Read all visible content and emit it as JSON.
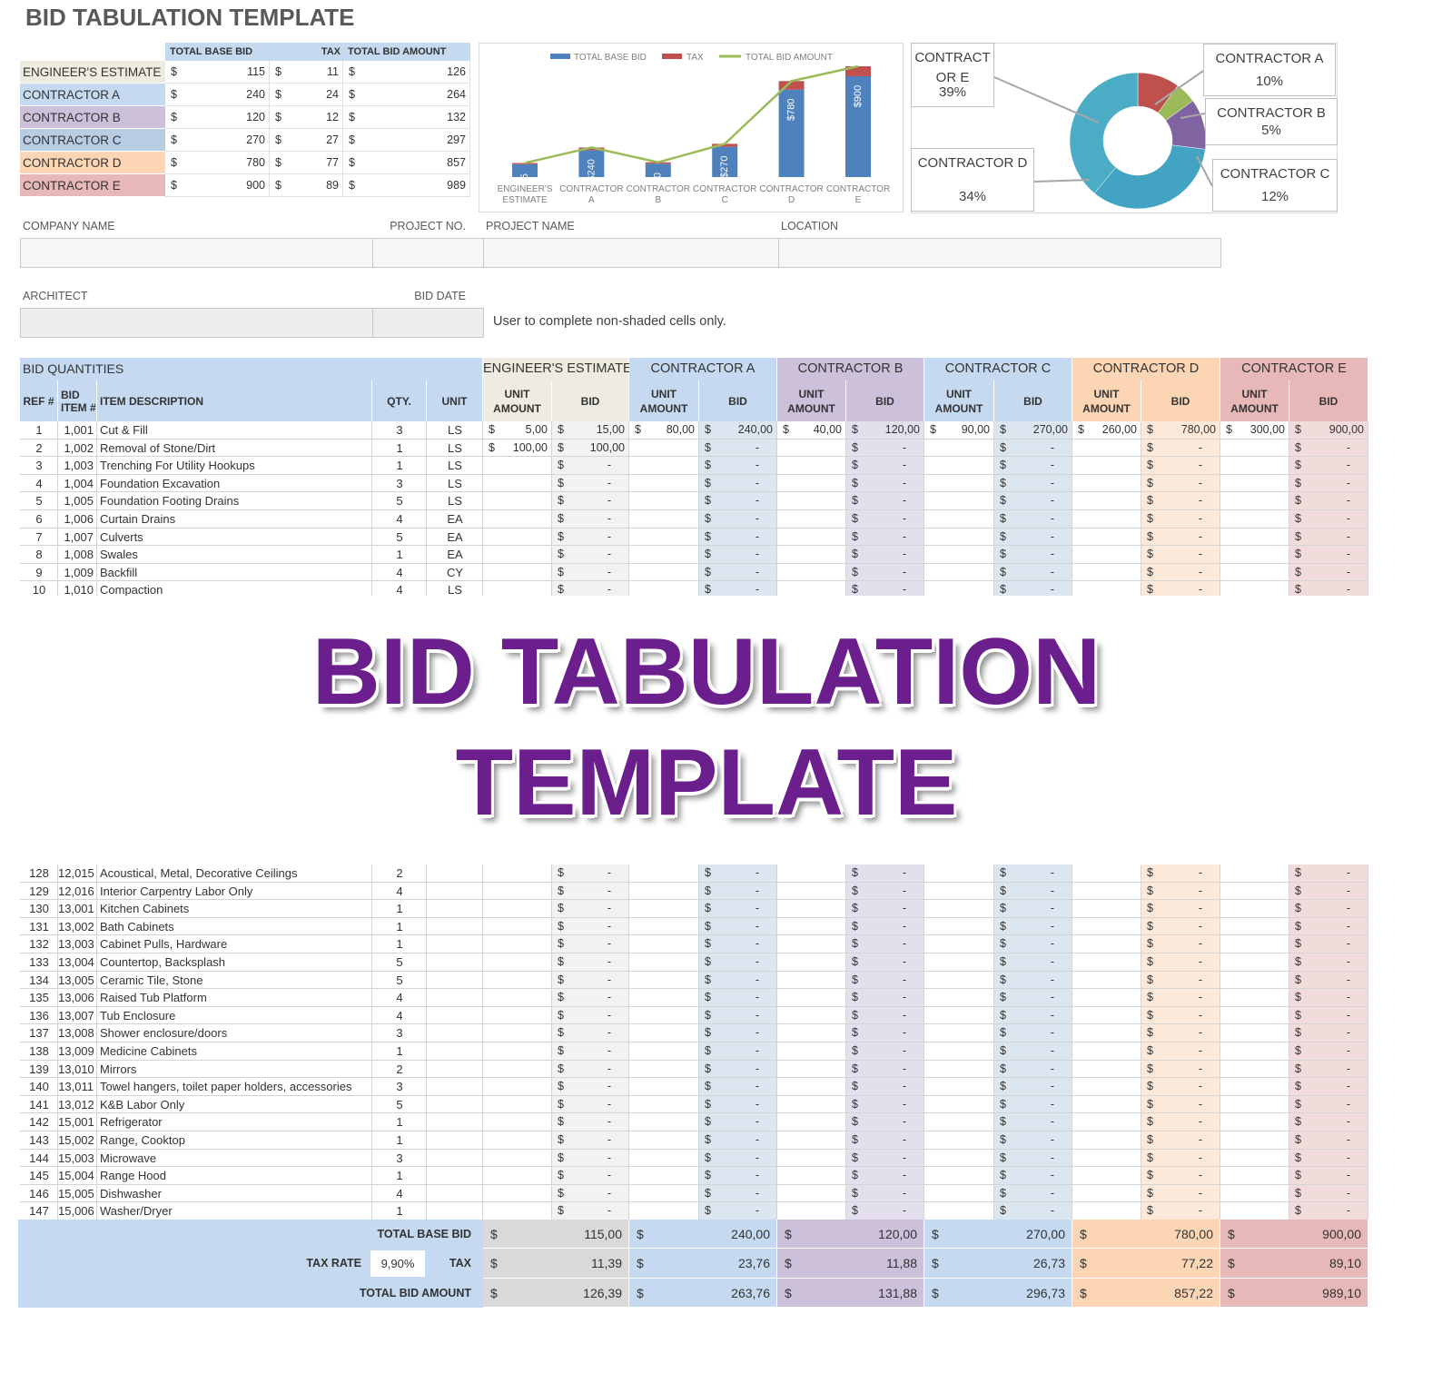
{
  "title": "BID TABULATION TEMPLATE",
  "currency": "$",
  "summary": {
    "headers": [
      "TOTAL BASE BID",
      "TAX",
      "TOTAL BID AMOUNT"
    ],
    "rows": [
      [
        "ENGINEER'S ESTIMATE",
        115,
        11,
        126
      ],
      [
        "CONTRACTOR A",
        240,
        24,
        264
      ],
      [
        "CONTRACTOR B",
        120,
        12,
        132
      ],
      [
        "CONTRACTOR C",
        270,
        27,
        297
      ],
      [
        "CONTRACTOR D",
        780,
        77,
        857
      ],
      [
        "CONTRACTOR E",
        900,
        89,
        989
      ]
    ]
  },
  "chart_data": [
    {
      "type": "bar",
      "stacked": true,
      "categories": [
        "ENGINEER'S ESTIMATE",
        "CONTRACTOR A",
        "CONTRACTOR B",
        "CONTRACTOR C",
        "CONTRACTOR D",
        "CONTRACTOR E"
      ],
      "series": [
        {
          "name": "TOTAL BASE BID",
          "color": "#4f81bd",
          "values": [
            115,
            240,
            120,
            270,
            780,
            900
          ],
          "value_labels": [
            "$115",
            "$240",
            "$120",
            "$270",
            "$780",
            "$900"
          ]
        },
        {
          "name": "TAX",
          "color": "#c0504d",
          "values": [
            11,
            24,
            12,
            27,
            77,
            89
          ]
        },
        {
          "name": "TOTAL BID AMOUNT",
          "type": "line",
          "color": "#9bbb59",
          "values": [
            126,
            264,
            132,
            297,
            857,
            989
          ]
        }
      ]
    },
    {
      "type": "pie",
      "donut": true,
      "categories": [
        "CONTRACTOR A",
        "CONTRACTOR B",
        "CONTRACTOR C",
        "CONTRACTOR D",
        "CONTRACTOR E"
      ],
      "values": [
        10,
        5,
        12,
        34,
        39
      ],
      "value_labels": [
        "10%",
        "5%",
        "12%",
        "34%",
        "39%"
      ],
      "colors": [
        "#c0504d",
        "#9bbb59",
        "#8064a2",
        "#43a3c2",
        "#4bacc6"
      ]
    }
  ],
  "form": {
    "company_name": "COMPANY NAME",
    "project_no": "PROJECT NO.",
    "project_name": "PROJECT NAME",
    "location": "LOCATION",
    "architect": "ARCHITECT",
    "bid_date": "BID DATE",
    "note": "User to complete non-shaded cells only."
  },
  "table": {
    "group_label": "BID QUANTITIES",
    "bidders": [
      "ENGINEER'S ESTIMATE",
      "CONTRACTOR A",
      "CONTRACTOR B",
      "CONTRACTOR C",
      "CONTRACTOR D",
      "CONTRACTOR E"
    ],
    "columns": [
      "REF #",
      "BID ITEM #",
      "ITEM DESCRIPTION",
      "QTY.",
      "UNIT"
    ],
    "sub_columns": [
      "UNIT AMOUNT",
      "BID"
    ],
    "rows_top": [
      [
        1,
        "1,001",
        "Cut & Fill",
        3,
        "LS",
        "5,00",
        "15,00",
        "80,00",
        "240,00",
        "40,00",
        "120,00",
        "90,00",
        "270,00",
        "260,00",
        "780,00",
        "300,00",
        "900,00"
      ],
      [
        2,
        "1,002",
        "Removal of Stone/Dirt",
        1,
        "LS",
        "100,00",
        "100,00",
        null,
        "-",
        null,
        "-",
        null,
        "-",
        null,
        "-",
        null,
        "-"
      ],
      [
        3,
        "1,003",
        "Trenching For Utility Hookups",
        1,
        "LS",
        null,
        "-",
        null,
        "-",
        null,
        "-",
        null,
        "-",
        null,
        "-",
        null,
        "-"
      ],
      [
        4,
        "1,004",
        "Foundation Excavation",
        3,
        "LS",
        null,
        "-",
        null,
        "-",
        null,
        "-",
        null,
        "-",
        null,
        "-",
        null,
        "-"
      ],
      [
        5,
        "1,005",
        "Foundation Footing Drains",
        5,
        "LS",
        null,
        "-",
        null,
        "-",
        null,
        "-",
        null,
        "-",
        null,
        "-",
        null,
        "-"
      ],
      [
        6,
        "1,006",
        "Curtain Drains",
        4,
        "EA",
        null,
        "-",
        null,
        "-",
        null,
        "-",
        null,
        "-",
        null,
        "-",
        null,
        "-"
      ],
      [
        7,
        "1,007",
        "Culverts",
        5,
        "EA",
        null,
        "-",
        null,
        "-",
        null,
        "-",
        null,
        "-",
        null,
        "-",
        null,
        "-"
      ],
      [
        8,
        "1,008",
        "Swales",
        1,
        "EA",
        null,
        "-",
        null,
        "-",
        null,
        "-",
        null,
        "-",
        null,
        "-",
        null,
        "-"
      ],
      [
        9,
        "1,009",
        "Backfill",
        4,
        "CY",
        null,
        "-",
        null,
        "-",
        null,
        "-",
        null,
        "-",
        null,
        "-",
        null,
        "-"
      ],
      [
        10,
        "1,010",
        "Compaction",
        4,
        "LS",
        null,
        "-",
        null,
        "-",
        null,
        "-",
        null,
        "-",
        null,
        "-",
        null,
        "-"
      ]
    ],
    "rows_bottom": [
      [
        128,
        "12,015",
        "Acoustical, Metal, Decorative Ceilings",
        2,
        null,
        null,
        "-",
        null,
        "-",
        null,
        "-",
        null,
        "-",
        null,
        "-",
        null,
        "-"
      ],
      [
        129,
        "12,016",
        "Interior Carpentry Labor Only",
        4,
        null,
        null,
        "-",
        null,
        "-",
        null,
        "-",
        null,
        "-",
        null,
        "-",
        null,
        "-"
      ],
      [
        130,
        "13,001",
        "Kitchen Cabinets",
        1,
        null,
        null,
        "-",
        null,
        "-",
        null,
        "-",
        null,
        "-",
        null,
        "-",
        null,
        "-"
      ],
      [
        131,
        "13,002",
        "Bath Cabinets",
        1,
        null,
        null,
        "-",
        null,
        "-",
        null,
        "-",
        null,
        "-",
        null,
        "-",
        null,
        "-"
      ],
      [
        132,
        "13,003",
        "Cabinet Pulls, Hardware",
        1,
        null,
        null,
        "-",
        null,
        "-",
        null,
        "-",
        null,
        "-",
        null,
        "-",
        null,
        "-"
      ],
      [
        133,
        "13,004",
        "Countertop, Backsplash",
        5,
        null,
        null,
        "-",
        null,
        "-",
        null,
        "-",
        null,
        "-",
        null,
        "-",
        null,
        "-"
      ],
      [
        134,
        "13,005",
        "Ceramic Tile, Stone",
        5,
        null,
        null,
        "-",
        null,
        "-",
        null,
        "-",
        null,
        "-",
        null,
        "-",
        null,
        "-"
      ],
      [
        135,
        "13,006",
        "Raised Tub Platform",
        4,
        null,
        null,
        "-",
        null,
        "-",
        null,
        "-",
        null,
        "-",
        null,
        "-",
        null,
        "-"
      ],
      [
        136,
        "13,007",
        "Tub Enclosure",
        4,
        null,
        null,
        "-",
        null,
        "-",
        null,
        "-",
        null,
        "-",
        null,
        "-",
        null,
        "-"
      ],
      [
        137,
        "13,008",
        "Shower enclosure/doors",
        3,
        null,
        null,
        "-",
        null,
        "-",
        null,
        "-",
        null,
        "-",
        null,
        "-",
        null,
        "-"
      ],
      [
        138,
        "13,009",
        "Medicine Cabinets",
        1,
        null,
        null,
        "-",
        null,
        "-",
        null,
        "-",
        null,
        "-",
        null,
        "-",
        null,
        "-"
      ],
      [
        139,
        "13,010",
        "Mirrors",
        2,
        null,
        null,
        "-",
        null,
        "-",
        null,
        "-",
        null,
        "-",
        null,
        "-",
        null,
        "-"
      ],
      [
        140,
        "13,011",
        "Towel hangers, toilet paper holders, accessories",
        3,
        null,
        null,
        "-",
        null,
        "-",
        null,
        "-",
        null,
        "-",
        null,
        "-",
        null,
        "-"
      ],
      [
        141,
        "13,012",
        "K&B Labor Only",
        5,
        null,
        null,
        "-",
        null,
        "-",
        null,
        "-",
        null,
        "-",
        null,
        "-",
        null,
        "-"
      ],
      [
        142,
        "15,001",
        "Refrigerator",
        1,
        null,
        null,
        "-",
        null,
        "-",
        null,
        "-",
        null,
        "-",
        null,
        "-",
        null,
        "-"
      ],
      [
        143,
        "15,002",
        "Range, Cooktop",
        1,
        null,
        null,
        "-",
        null,
        "-",
        null,
        "-",
        null,
        "-",
        null,
        "-",
        null,
        "-"
      ],
      [
        144,
        "15,003",
        "Microwave",
        3,
        null,
        null,
        "-",
        null,
        "-",
        null,
        "-",
        null,
        "-",
        null,
        "-",
        null,
        "-"
      ],
      [
        145,
        "15,004",
        "Range Hood",
        1,
        null,
        null,
        "-",
        null,
        "-",
        null,
        "-",
        null,
        "-",
        null,
        "-",
        null,
        "-"
      ],
      [
        146,
        "15,005",
        "Dishwasher",
        4,
        null,
        null,
        "-",
        null,
        "-",
        null,
        "-",
        null,
        "-",
        null,
        "-",
        null,
        "-"
      ],
      [
        147,
        "15,006",
        "Washer/Dryer",
        1,
        null,
        null,
        "-",
        null,
        "-",
        null,
        "-",
        null,
        "-",
        null,
        "-",
        null,
        "-"
      ]
    ]
  },
  "totals": {
    "base_label": "TOTAL BASE BID",
    "tax_rate_label": "TAX RATE",
    "tax_rate": "9,90%",
    "tax_label": "TAX",
    "total_label": "TOTAL BID AMOUNT",
    "base": [
      "115,00",
      "240,00",
      "120,00",
      "270,00",
      "780,00",
      "900,00"
    ],
    "tax": [
      "11,39",
      "23,76",
      "11,88",
      "26,73",
      "77,22",
      "89,10"
    ],
    "total": [
      "126,39",
      "263,76",
      "131,88",
      "296,73",
      "857,22",
      "989,10"
    ]
  },
  "banner": [
    "BID TABULATION",
    "TEMPLATE"
  ]
}
